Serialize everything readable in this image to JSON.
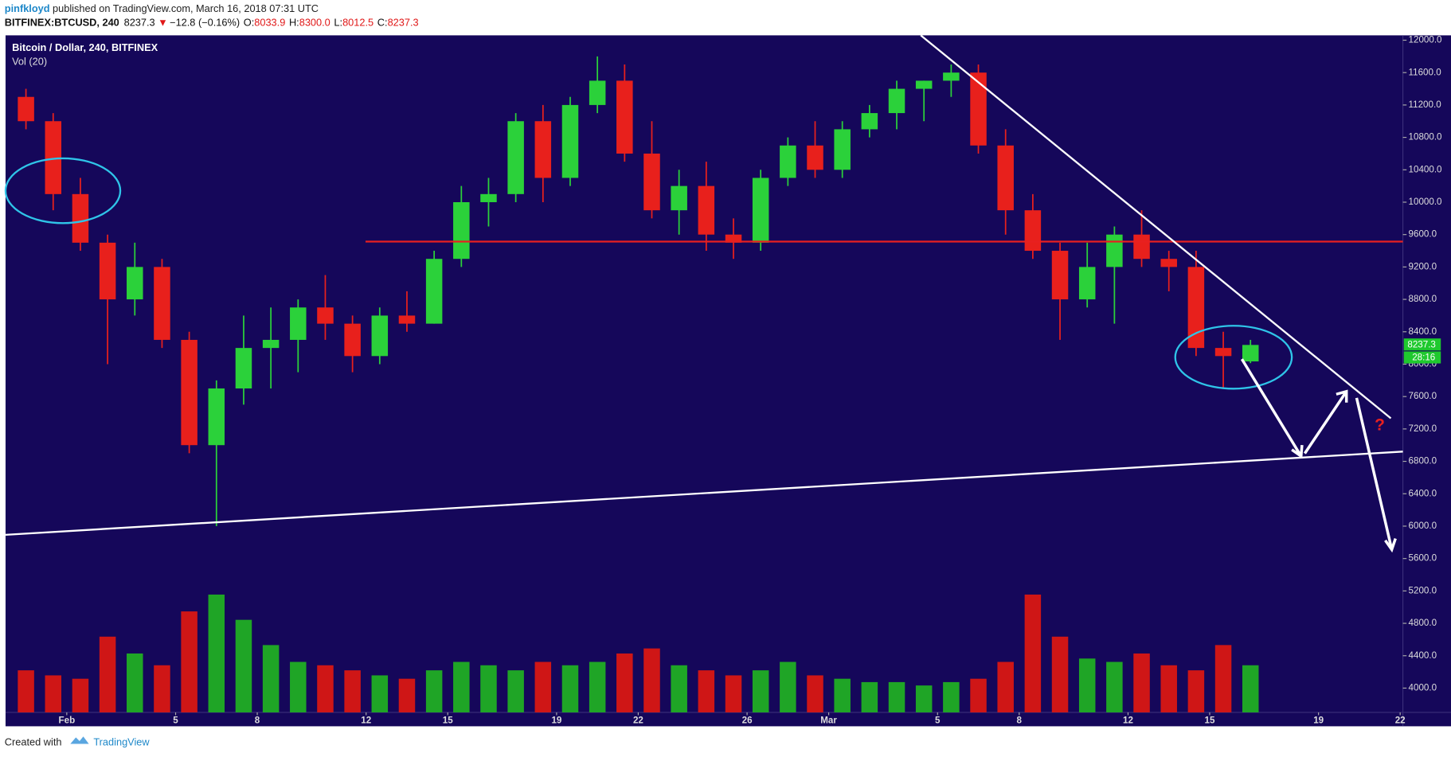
{
  "header": {
    "author": "pinfkloyd",
    "published": "published on TradingView.com, March 16, 2018 07:31 UTC",
    "symbol": "BITFINEX:BTCUSD, 240",
    "last": "8237.3",
    "arrow": "▼",
    "change": "−12.8 (−0.16%)",
    "o_label": "O:",
    "o": "8033.9",
    "h_label": "H:",
    "h": "8300.0",
    "l_label": "L:",
    "l": "8012.5",
    "c_label": "C:",
    "c": "8237.3"
  },
  "footer": {
    "created": "Created with",
    "brand": "TradingView"
  },
  "annotation": "?",
  "countdown": "28:16",
  "chart_data": {
    "type": "candlestick",
    "title": "Bitcoin / Dollar, 240, BITFINEX",
    "subtitle": "Vol (20)",
    "x": [
      -1.5,
      -0.5,
      0.5,
      1.5,
      2.5,
      3.5,
      4.5,
      5.5,
      6.5,
      7.5,
      8.5,
      9.5,
      10.5,
      11.5,
      12.5,
      13.5,
      14.5,
      15.5,
      16.5,
      17.5,
      18.5,
      19.5,
      20.5,
      21.5,
      22.5,
      23.5,
      24.5,
      25.5,
      26.5,
      27.5,
      28.5,
      29.5,
      30.5,
      31.5,
      32.5,
      33.5,
      34.5,
      35.5,
      36.5,
      37.5,
      38.5,
      39.5,
      40.5,
      41.5,
      42.5,
      43.5
    ],
    "open": [
      11300,
      11000,
      10100,
      9500,
      8800,
      9200,
      8300,
      7000,
      7700,
      8200,
      8300,
      8700,
      8500,
      8100,
      8600,
      8500,
      9300,
      10000,
      10100,
      11000,
      10300,
      11200,
      11500,
      10600,
      9900,
      10200,
      9600,
      9500,
      10300,
      10700,
      10400,
      10900,
      11100,
      11400,
      11500,
      11600,
      10700,
      9900,
      9400,
      8800,
      9200,
      9600,
      9300,
      9200,
      8200,
      8033.9
    ],
    "high": [
      11400,
      11100,
      10300,
      9600,
      9500,
      9300,
      8400,
      7800,
      8600,
      8700,
      8800,
      9100,
      8600,
      8700,
      8900,
      9400,
      10200,
      10300,
      11100,
      11200,
      11300,
      11800,
      11700,
      11000,
      10400,
      10500,
      9800,
      10400,
      10800,
      11000,
      11000,
      11200,
      11500,
      11500,
      11700,
      11700,
      10900,
      10100,
      9500,
      9500,
      9700,
      9900,
      9400,
      9400,
      8400,
      8300
    ],
    "low": [
      10900,
      9900,
      9400,
      8000,
      8600,
      8200,
      6900,
      6000,
      7500,
      7700,
      7900,
      8300,
      7900,
      8000,
      8400,
      8500,
      9200,
      9700,
      10000,
      10000,
      10200,
      11100,
      10500,
      9800,
      9600,
      9400,
      9300,
      9400,
      10200,
      10300,
      10300,
      10800,
      10900,
      11000,
      11300,
      10600,
      9600,
      9300,
      8300,
      8700,
      8500,
      9200,
      8900,
      8100,
      7700,
      8012.5
    ],
    "close": [
      11000,
      10100,
      9500,
      8800,
      9200,
      8300,
      7000,
      7700,
      8200,
      8300,
      8700,
      8500,
      8100,
      8600,
      8500,
      9300,
      10000,
      10100,
      11000,
      10300,
      11200,
      11500,
      10600,
      9900,
      10200,
      9600,
      9500,
      10300,
      10700,
      10400,
      10900,
      11100,
      11400,
      11500,
      11600,
      10700,
      9900,
      9400,
      8800,
      9200,
      9600,
      9300,
      9200,
      8200,
      8100,
      8237.3
    ],
    "volume": [
      25,
      22,
      20,
      45,
      35,
      28,
      60,
      70,
      55,
      40,
      30,
      28,
      25,
      22,
      20,
      25,
      30,
      28,
      25,
      30,
      28,
      30,
      35,
      38,
      28,
      25,
      22,
      25,
      30,
      22,
      20,
      18,
      18,
      16,
      18,
      20,
      30,
      70,
      45,
      32,
      30,
      35,
      28,
      25,
      40,
      28
    ],
    "up_color": "#2bd13a",
    "down_color": "#e8201c",
    "vol_up_color": "#1fa526",
    "vol_down_color": "#cf1616",
    "xlim": [
      -2.25,
      49.1
    ],
    "xticks": [
      {
        "value": 0,
        "label": "Feb"
      },
      {
        "value": 4,
        "label": "5"
      },
      {
        "value": 7,
        "label": "8"
      },
      {
        "value": 11,
        "label": "12"
      },
      {
        "value": 14,
        "label": "15"
      },
      {
        "value": 18,
        "label": "19"
      },
      {
        "value": 21,
        "label": "22"
      },
      {
        "value": 25,
        "label": "26"
      },
      {
        "value": 28,
        "label": "Mar"
      },
      {
        "value": 32,
        "label": "5"
      },
      {
        "value": 35,
        "label": "8"
      },
      {
        "value": 39,
        "label": "12"
      },
      {
        "value": 42,
        "label": "15"
      },
      {
        "value": 46,
        "label": "19"
      },
      {
        "value": 49,
        "label": "22"
      }
    ],
    "ylim": [
      3700,
      12060
    ],
    "yticks": [
      {
        "value": 4000,
        "label": "4000.0"
      },
      {
        "value": 4400,
        "label": "4400.0"
      },
      {
        "value": 4800,
        "label": "4800.0"
      },
      {
        "value": 5200,
        "label": "5200.0"
      },
      {
        "value": 5600,
        "label": "5600.0"
      },
      {
        "value": 6000,
        "label": "6000.0"
      },
      {
        "value": 6400,
        "label": "6400.0"
      },
      {
        "value": 6800,
        "label": "6800.0"
      },
      {
        "value": 7200,
        "label": "7200.0"
      },
      {
        "value": 7600,
        "label": "7600.0"
      },
      {
        "value": 8000,
        "label": "8000.0"
      },
      {
        "value": 8400,
        "label": "8400.0"
      },
      {
        "value": 8800,
        "label": "8800.0"
      },
      {
        "value": 9200,
        "label": "9200.0"
      },
      {
        "value": 9600,
        "label": "9600.0"
      },
      {
        "value": 10000,
        "label": "10000.0"
      },
      {
        "value": 10400,
        "label": "10400.0"
      },
      {
        "value": 10800,
        "label": "10800.0"
      },
      {
        "value": 11200,
        "label": "11200.0"
      },
      {
        "value": 11600,
        "label": "11600.0"
      },
      {
        "value": 12000,
        "label": "12000.0"
      }
    ],
    "vlim": [
      0,
      100
    ]
  }
}
